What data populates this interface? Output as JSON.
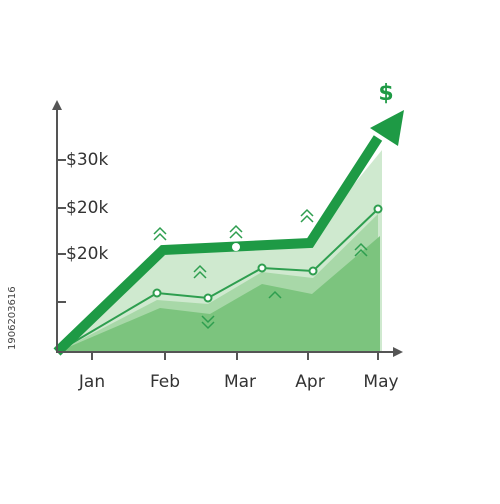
{
  "icon": "$",
  "y_labels": [
    "$30k",
    "$20k",
    "$20k"
  ],
  "x_labels": [
    "Jan",
    "Feb",
    "Mar",
    "Apr",
    "May"
  ],
  "stock_id": "1906203616"
}
